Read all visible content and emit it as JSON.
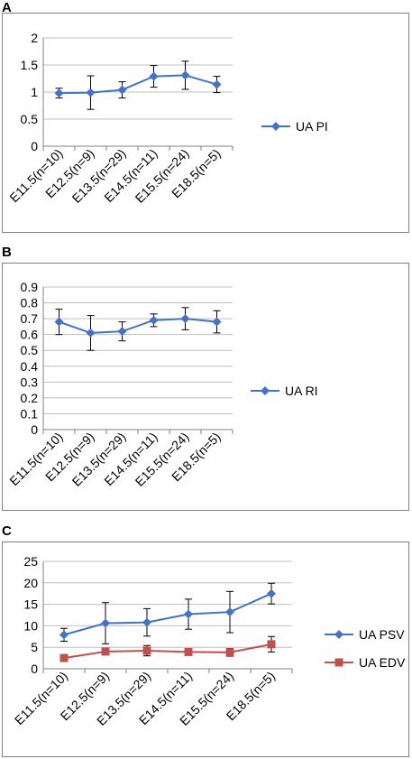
{
  "colors": {
    "blue": "#4472C4",
    "red": "#C0504D",
    "grid": "#BFBFBF",
    "border": "#808080"
  },
  "chart_data": [
    {
      "panel": "A",
      "type": "line",
      "categories": [
        "E11.5(n=10)",
        "E12.5(n=9)",
        "E13.5(n=29)",
        "E14.5(n=11)",
        "E15.5(n=24)",
        "E18.5(n=5)"
      ],
      "ylim": [
        0,
        2
      ],
      "yticks": [
        "0",
        "0.5",
        "1",
        "1.5",
        "2"
      ],
      "grid": true,
      "legend_position": "right",
      "series": [
        {
          "name": "UA PI",
          "color": "#4472C4",
          "marker": "diamond",
          "values": [
            0.98,
            0.99,
            1.04,
            1.29,
            1.31,
            1.14
          ],
          "errors": [
            0.09,
            0.31,
            0.15,
            0.2,
            0.26,
            0.15
          ]
        }
      ]
    },
    {
      "panel": "B",
      "type": "line",
      "categories": [
        "E11.5(n=10)",
        "E12.5(n=9)",
        "E13.5(n=29)",
        "E14.5(n=11)",
        "E15.5(n=24)",
        "E18.5(n=5)"
      ],
      "ylim": [
        0,
        0.9
      ],
      "yticks": [
        "0",
        "0.1",
        "0.2",
        "0.3",
        "0.4",
        "0.5",
        "0.6",
        "0.7",
        "0.8",
        "0.9"
      ],
      "grid": true,
      "legend_position": "right",
      "series": [
        {
          "name": "UA RI",
          "color": "#4472C4",
          "marker": "diamond",
          "values": [
            0.68,
            0.61,
            0.62,
            0.69,
            0.7,
            0.68
          ],
          "errors": [
            0.08,
            0.11,
            0.06,
            0.04,
            0.07,
            0.07
          ]
        }
      ]
    },
    {
      "panel": "C",
      "type": "line",
      "categories": [
        "E11.5(n=10)",
        "E12.5(n=9)",
        "E13.5(n=29)",
        "E14.5(n=11)",
        "E15.5(n=24)",
        "E18.5(n=5)"
      ],
      "ylim": [
        0,
        25
      ],
      "yticks": [
        "0",
        "5",
        "10",
        "15",
        "20",
        "25"
      ],
      "grid": true,
      "legend_position": "right",
      "series": [
        {
          "name": "UA PSV",
          "color": "#4472C4",
          "marker": "diamond",
          "values": [
            7.9,
            10.6,
            10.8,
            12.7,
            13.2,
            17.5
          ],
          "errors": [
            1.5,
            4.8,
            3.2,
            3.5,
            4.8,
            2.4
          ]
        },
        {
          "name": "UA EDV",
          "color": "#C0504D",
          "marker": "square",
          "values": [
            2.5,
            4.0,
            4.2,
            3.9,
            3.8,
            5.7
          ],
          "errors": [
            0.0,
            0.5,
            1.2,
            0.6,
            0.9,
            1.8
          ]
        }
      ]
    }
  ]
}
